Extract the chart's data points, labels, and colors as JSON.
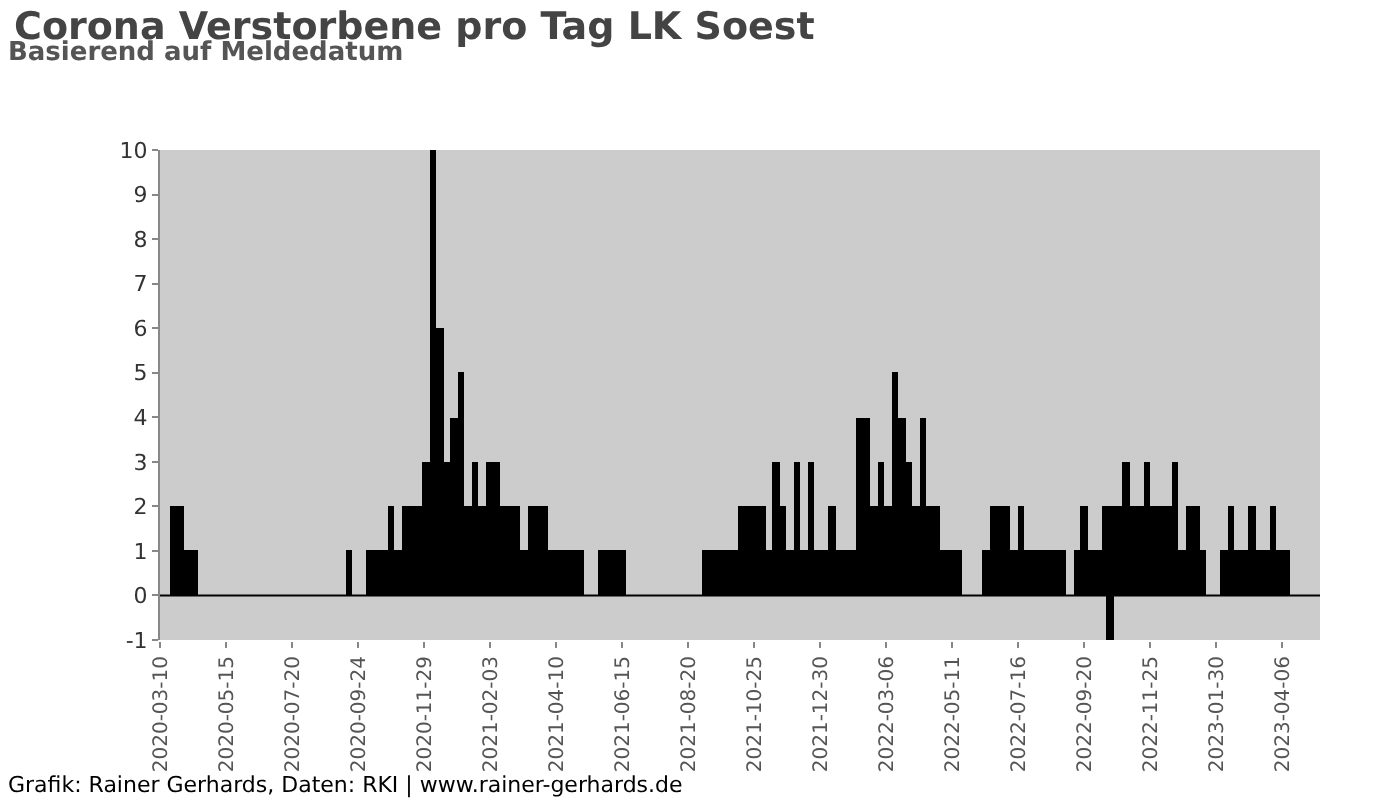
{
  "chart_data": {
    "type": "bar",
    "title": "Corona Verstorbene pro Tag LK Soest",
    "subtitle": "Basierend auf Meldedatum",
    "annotations": [
      "Grafik: Rainer Gerhards, Daten: RKI | www.rainer-gerhards.de"
    ],
    "x": [
      "2020-03-24",
      "2020-03-31",
      "2020-04-07",
      "2020-04-14",
      "2020-09-15",
      "2020-10-06",
      "2020-10-13",
      "2020-10-20",
      "2020-10-27",
      "2020-11-03",
      "2020-11-10",
      "2020-11-17",
      "2020-11-24",
      "2020-12-01",
      "2020-12-08",
      "2020-12-15",
      "2020-12-22",
      "2020-12-29",
      "2021-01-05",
      "2021-01-12",
      "2021-01-19",
      "2021-01-26",
      "2021-02-02",
      "2021-02-09",
      "2021-02-16",
      "2021-02-23",
      "2021-03-02",
      "2021-03-09",
      "2021-03-16",
      "2021-03-23",
      "2021-03-30",
      "2021-04-06",
      "2021-04-13",
      "2021-04-20",
      "2021-04-27",
      "2021-05-04",
      "2021-05-25",
      "2021-06-01",
      "2021-06-08",
      "2021-06-15",
      "2021-09-07",
      "2021-09-14",
      "2021-09-21",
      "2021-09-28",
      "2021-10-05",
      "2021-10-12",
      "2021-10-19",
      "2021-10-26",
      "2021-11-02",
      "2021-11-09",
      "2021-11-16",
      "2021-11-23",
      "2021-11-30",
      "2021-12-07",
      "2021-12-14",
      "2021-12-21",
      "2021-12-28",
      "2022-01-04",
      "2022-01-11",
      "2022-01-18",
      "2022-01-25",
      "2022-02-01",
      "2022-02-08",
      "2022-02-15",
      "2022-02-22",
      "2022-03-01",
      "2022-03-08",
      "2022-03-15",
      "2022-03-22",
      "2022-03-29",
      "2022-04-05",
      "2022-04-12",
      "2022-04-19",
      "2022-04-26",
      "2022-05-03",
      "2022-05-10",
      "2022-05-17",
      "2022-06-14",
      "2022-06-21",
      "2022-06-28",
      "2022-07-05",
      "2022-07-12",
      "2022-07-19",
      "2022-07-26",
      "2022-08-02",
      "2022-08-09",
      "2022-08-16",
      "2022-08-23",
      "2022-08-30",
      "2022-09-13",
      "2022-09-20",
      "2022-09-27",
      "2022-10-04",
      "2022-10-11",
      "2022-10-16",
      "2022-10-18",
      "2022-10-25",
      "2022-11-01",
      "2022-11-08",
      "2022-11-15",
      "2022-11-22",
      "2022-11-29",
      "2022-12-06",
      "2022-12-13",
      "2022-12-20",
      "2022-12-27",
      "2023-01-03",
      "2023-01-10",
      "2023-01-17",
      "2023-02-07",
      "2023-02-14",
      "2023-02-21",
      "2023-02-28",
      "2023-03-07",
      "2023-03-14",
      "2023-03-21",
      "2023-03-28",
      "2023-04-04",
      "2023-04-11"
    ],
    "values": [
      2,
      2,
      1,
      1,
      1,
      1,
      1,
      1,
      2,
      1,
      2,
      2,
      2,
      3,
      10,
      6,
      3,
      4,
      5,
      2,
      3,
      2,
      3,
      3,
      2,
      2,
      2,
      1,
      2,
      2,
      2,
      1,
      1,
      1,
      1,
      1,
      1,
      1,
      1,
      1,
      1,
      1,
      1,
      1,
      1,
      2,
      2,
      2,
      2,
      1,
      3,
      2,
      1,
      3,
      1,
      3,
      1,
      1,
      2,
      1,
      1,
      1,
      4,
      4,
      2,
      3,
      2,
      5,
      4,
      3,
      2,
      4,
      2,
      2,
      1,
      1,
      1,
      1,
      2,
      2,
      2,
      1,
      2,
      1,
      1,
      1,
      1,
      1,
      1,
      1,
      2,
      1,
      1,
      2,
      -1,
      2,
      2,
      3,
      2,
      2,
      3,
      2,
      2,
      2,
      3,
      1,
      2,
      2,
      1,
      1,
      2,
      1,
      1,
      2,
      1,
      1,
      2,
      1,
      1
    ],
    "color": "#000000",
    "xlim": [
      "2020-03-10",
      "2023-05-14"
    ],
    "xticks": [
      "2020-03-10",
      "2020-05-15",
      "2020-07-20",
      "2020-09-24",
      "2020-11-29",
      "2021-02-03",
      "2021-04-10",
      "2021-06-15",
      "2021-08-20",
      "2021-10-25",
      "2021-12-30",
      "2022-03-06",
      "2022-05-11",
      "2022-07-16",
      "2022-09-20",
      "2022-11-25",
      "2023-01-30",
      "2023-04-06"
    ],
    "ref_lines": [
      {
        "axis": "y",
        "value": 0,
        "color": "#000000"
      }
    ],
    "ylim": [
      -1,
      10
    ],
    "yticks": [
      -1,
      0,
      1,
      2,
      3,
      4,
      5,
      6,
      7,
      8,
      9,
      10
    ],
    "grid": false
  }
}
